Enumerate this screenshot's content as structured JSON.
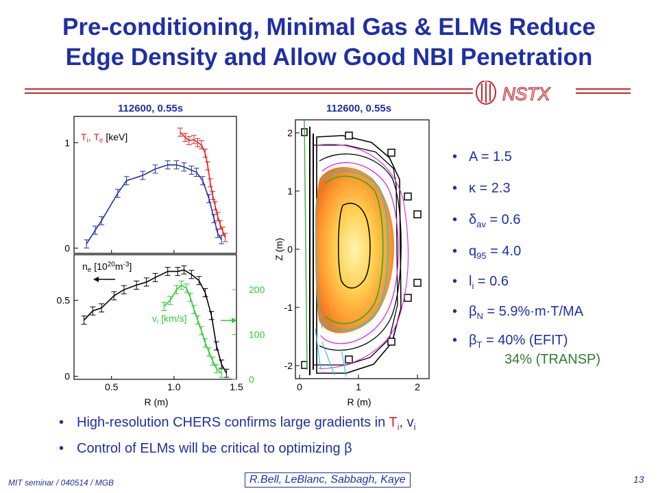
{
  "slide": {
    "title_line1": "Pre-conditioning, Minimal Gas & ELMs Reduce",
    "title_line2": "Edge Density and Allow Good NBI Penetration",
    "logo_text": "NSTX",
    "left_plot_label": "112600, 0.55s",
    "right_plot_label": "112600, 0.55s",
    "colors": {
      "title": "#1f2fa6",
      "rule": "#c0282e",
      "ti": "#e02020",
      "te": "#1f2fa6",
      "vi": "#2ecc2e",
      "ne": "#000000"
    }
  },
  "params": {
    "A": {
      "label": "A = 1.5"
    },
    "kappa": {
      "symbol": "κ",
      "text": " = 2.3"
    },
    "delta": {
      "symbol": "δ",
      "sub": "av",
      "text": " = 0.6"
    },
    "q95": {
      "main": "q",
      "sub": "95",
      "text": " = 4.0"
    },
    "li": {
      "main": "l",
      "sub": "i",
      "text": " = 0.6"
    },
    "betaN": {
      "symbol": "β",
      "sub": "N",
      "text": " = 5.9%·m·T/MA"
    },
    "betaT": {
      "symbol": "β",
      "sub": "T",
      "text": " = 40% (EFIT)",
      "line2": "34% (TRANSP)"
    }
  },
  "bullets": {
    "b1_text": "High-resolution CHERS confirms large gradients in ",
    "b1_ti_main": "T",
    "b1_ti_sub": "i",
    "b1_sep": ", ",
    "b1_vi_main": "v",
    "b1_vi_sub": "i",
    "b2_text": "Control of ELMs will be critical to optimizing ",
    "b2_symbol": "β"
  },
  "footer": {
    "left": "MIT seminar / 040514 / MGB",
    "center": "R.Bell, LeBlanc, Sabbagh, Kaye",
    "page": "13"
  },
  "chart_data": [
    {
      "type": "line",
      "xlabel": "",
      "legend": "Ti, Te [keV]",
      "legend_parts": {
        "t1": "T",
        "s1": "i",
        "sep": ", ",
        "t2": "T",
        "s2": "e",
        "unit": " [keV]"
      },
      "xlim": [
        0.2,
        1.5
      ],
      "ylim": [
        -0.05,
        1.25
      ],
      "yticks": [
        "0",
        "1"
      ],
      "series": [
        {
          "name": "Te",
          "x": [
            0.3,
            0.37,
            0.42,
            0.55,
            0.62,
            0.75,
            0.85,
            0.95,
            1.02,
            1.08,
            1.14,
            1.18,
            1.23,
            1.28,
            1.32,
            1.35,
            1.38
          ],
          "y": [
            0.04,
            0.17,
            0.26,
            0.52,
            0.64,
            0.69,
            0.75,
            0.79,
            0.79,
            0.77,
            0.74,
            0.72,
            0.64,
            0.47,
            0.28,
            0.14,
            0.08
          ]
        },
        {
          "name": "Ti",
          "x": [
            1.05,
            1.09,
            1.12,
            1.16,
            1.19,
            1.22,
            1.25,
            1.27,
            1.29,
            1.31,
            1.33,
            1.35,
            1.37,
            1.39,
            1.41
          ],
          "y": [
            1.1,
            1.05,
            1.02,
            1.03,
            1.0,
            0.98,
            0.9,
            0.78,
            0.62,
            0.5,
            0.4,
            0.3,
            0.22,
            0.16,
            0.1
          ]
        }
      ]
    },
    {
      "type": "line",
      "xlabel": "R (m)",
      "xlim": [
        0.2,
        1.5
      ],
      "xticks": [
        "0.5",
        "1.0",
        "1.5"
      ],
      "ylim": [
        -0.02,
        0.8
      ],
      "yticks": [
        "0",
        "0.5"
      ],
      "y2ticks": [
        "0",
        "100",
        "200"
      ],
      "legend_ne": {
        "t": "n",
        "s": "e",
        "mid": " [10",
        "sup": "20",
        "end": "m",
        "sup2": "-3",
        "close": "]"
      },
      "legend_vi": {
        "t": "v",
        "s": "i",
        "unit": " [km/s]"
      },
      "series": [
        {
          "name": "ne",
          "x": [
            0.28,
            0.35,
            0.42,
            0.52,
            0.6,
            0.7,
            0.78,
            0.85,
            0.95,
            1.03,
            1.08,
            1.14,
            1.2,
            1.25,
            1.3,
            1.34,
            1.38,
            1.42
          ],
          "y": [
            0.37,
            0.43,
            0.45,
            0.53,
            0.57,
            0.6,
            0.62,
            0.65,
            0.69,
            0.69,
            0.7,
            0.67,
            0.63,
            0.55,
            0.4,
            0.2,
            0.08,
            0.02
          ]
        },
        {
          "name": "vi",
          "x": [
            0.92,
            0.97,
            1.02,
            1.06,
            1.1,
            1.13,
            1.16,
            1.19,
            1.22,
            1.25,
            1.28,
            1.31,
            1.34,
            1.38
          ],
          "y": [
            0.46,
            0.5,
            0.57,
            0.6,
            0.58,
            0.52,
            0.44,
            0.37,
            0.3,
            0.22,
            0.16,
            0.1,
            0.05,
            0.02
          ]
        }
      ]
    },
    {
      "type": "contour",
      "xlabel": "R (m)",
      "ylabel": "Z (m)",
      "xticks": [
        "0",
        "1",
        "2"
      ],
      "yticks": [
        "2",
        "1",
        "0",
        "-1",
        "-2"
      ]
    }
  ]
}
